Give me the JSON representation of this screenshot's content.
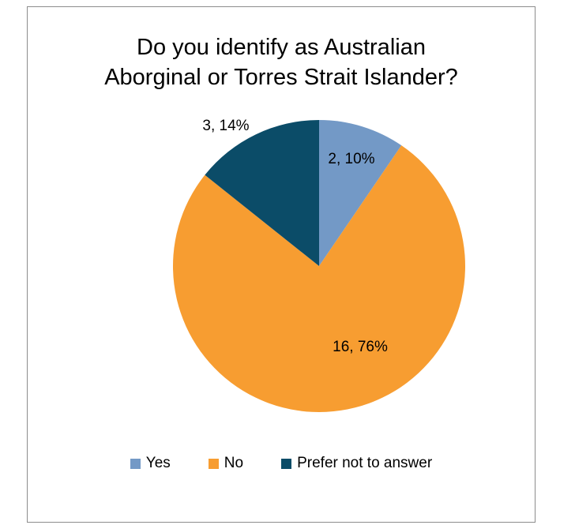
{
  "chart_data": {
    "type": "pie",
    "title_lines": [
      "Do you identify as Australian",
      "Aborginal or Torres Strait Islander?"
    ],
    "categories": [
      "Yes",
      "No",
      "Prefer not to answer"
    ],
    "values": [
      2,
      16,
      3
    ],
    "percentages": [
      "10%",
      "76%",
      "14%"
    ],
    "data_labels": [
      "2, 10%",
      "16, 76%",
      "3, 14%"
    ],
    "colors": [
      "#7399c6",
      "#f79d31",
      "#0b4c68"
    ],
    "legend_position": "bottom"
  }
}
